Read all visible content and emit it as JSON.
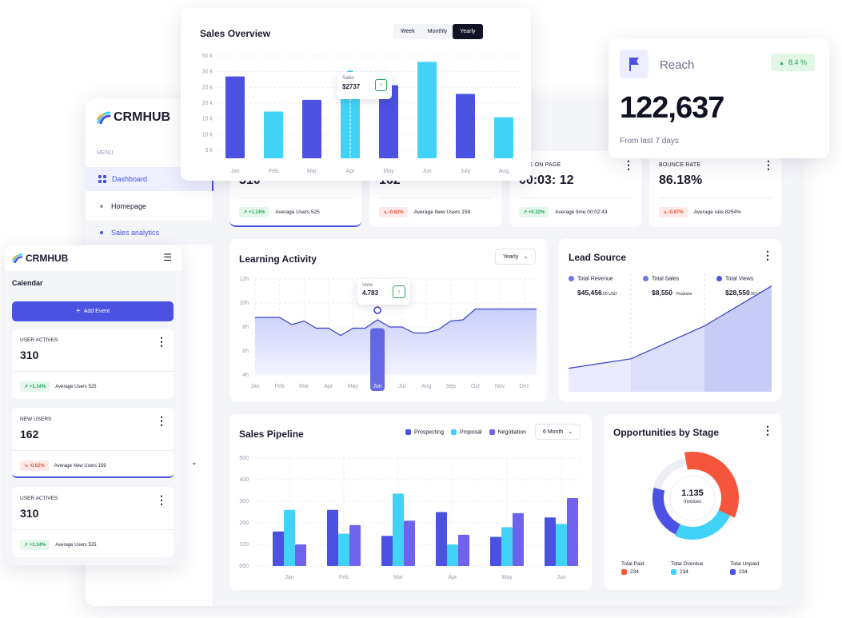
{
  "brand": {
    "name": "CRMHUB"
  },
  "sidebar": {
    "section_label": "MENU",
    "items": [
      {
        "label": "Dashboard"
      },
      {
        "label": "Homepage"
      },
      {
        "label": "Sales analytics"
      }
    ]
  },
  "stats": [
    {
      "label": "",
      "value": "310",
      "delta": "+1.14%",
      "note": "Average Users 525"
    },
    {
      "label": "",
      "value": "162",
      "delta": "-0.62%",
      "note": "Average New Users 159"
    },
    {
      "label": "TIME ON PAGE",
      "value": "00:03: 12",
      "delta": "+0.32%",
      "note": "Average time 00:02:43"
    },
    {
      "label": "BOUNCE RATE",
      "value": "86.18%",
      "delta": "-0.87%",
      "note": "Average rate 8254%"
    }
  ],
  "sales_overview": {
    "title": "Sales Overview",
    "tabs": [
      "Week",
      "Monthly",
      "Yearly"
    ],
    "active_tab": "Yearly",
    "tooltip": {
      "label": "Sales",
      "value": "$2737"
    },
    "chart_data": {
      "type": "bar",
      "categories": [
        "Jan",
        "Feb",
        "Mar",
        "Apr",
        "May",
        "Jun",
        "July",
        "Aug"
      ],
      "values": [
        28,
        16,
        20,
        29,
        25,
        33,
        22,
        14
      ],
      "y_ticks": [
        "5 k",
        "10 k",
        "15 k",
        "20 k",
        "25 k",
        "30 k",
        "50 k"
      ],
      "ylim": [
        0,
        35
      ],
      "colors": [
        "#4b51e0",
        "#41d2f7",
        "#4b51e0",
        "#41d2f7",
        "#4b51e0",
        "#41d2f7",
        "#4b51e0",
        "#41d2f7"
      ]
    }
  },
  "reach": {
    "title": "Reach",
    "delta": "8.4 %",
    "value": "122,637",
    "note": "From last 7 days"
  },
  "learning": {
    "title": "Learning Activity",
    "dropdown": "Yearly",
    "tooltip": {
      "label": "View",
      "value": "4.783"
    },
    "chart_data": {
      "type": "area",
      "categories": [
        "Jan",
        "Feb",
        "Mar",
        "Apr",
        "May",
        "Jun",
        "Jul",
        "Aug",
        "Sep",
        "Oct",
        "Nov",
        "Dec"
      ],
      "x": [
        0,
        0.5,
        1,
        1.5,
        2,
        2.5,
        3,
        3.5,
        4,
        4.5,
        5,
        5.5,
        6,
        6.5,
        7,
        7.5,
        8,
        8.5,
        9,
        9.5,
        10,
        10.5,
        11,
        11.5
      ],
      "values": [
        8.8,
        8.8,
        8.8,
        8.2,
        8.5,
        7.9,
        7.9,
        7.3,
        7.9,
        7.9,
        8.6,
        8.0,
        8.0,
        7.5,
        7.5,
        7.8,
        8.5,
        8.6,
        9.5,
        9.5,
        9.5,
        9.5,
        9.5,
        9.5
      ],
      "y_ticks": [
        "4h",
        "6h",
        "8h",
        "10h",
        "12h"
      ],
      "ylim": [
        4,
        12
      ],
      "highlight": "Jun"
    }
  },
  "lead_source": {
    "title": "Lead Source",
    "items": [
      {
        "label": "Total Revenue",
        "value": "$45,456",
        "unit": ".00 USD",
        "color": "#6f78e8"
      },
      {
        "label": "Total Sales",
        "value": "$8,550",
        "unit": "Products",
        "color": "#6f78e8"
      },
      {
        "label": "Total Views",
        "value": "$28,550",
        "unit": ".00 USD",
        "color": "#4b51e0"
      }
    ],
    "chart_data": {
      "type": "area",
      "x": [
        0,
        1,
        2,
        3
      ],
      "values": [
        10,
        14,
        28,
        45
      ],
      "ylim": [
        0,
        50
      ]
    }
  },
  "pipeline": {
    "title": "Sales Pipeline",
    "dropdown": "6 Month",
    "chart_data": {
      "type": "bar",
      "categories": [
        "Jan",
        "Feb",
        "Mar",
        "Apr",
        "May",
        "Jun"
      ],
      "series": [
        {
          "name": "Prospecting",
          "color": "#4b51e0",
          "values": [
            160,
            260,
            140,
            250,
            135,
            225
          ]
        },
        {
          "name": "Proposal",
          "color": "#41d2f7",
          "values": [
            260,
            150,
            335,
            100,
            180,
            195
          ]
        },
        {
          "name": "Negotiation",
          "color": "#6f63ee",
          "values": [
            100,
            190,
            210,
            145,
            245,
            315
          ]
        }
      ],
      "y_ticks": [
        "000",
        "100",
        "200",
        "300",
        "400",
        "500"
      ],
      "ylim": [
        0,
        500
      ]
    }
  },
  "opportunities": {
    "title": "Opportunities by Stage",
    "center_value": "1.135",
    "center_label": "Invoices",
    "chart_data": {
      "type": "pie",
      "labels": [
        "Total Paid",
        "Total Overdue",
        "Total Unpaid"
      ],
      "values": [
        234,
        234,
        234
      ],
      "colors": [
        "#f5553b",
        "#41d2f7",
        "#4b51e0"
      ]
    },
    "legend": [
      {
        "label": "Total Paid",
        "value": "234",
        "color": "#f5553b"
      },
      {
        "label": "Total Overdue",
        "value": "234",
        "color": "#41d2f7"
      },
      {
        "label": "Total Unpaid",
        "value": "234",
        "color": "#4b51e0"
      }
    ]
  },
  "mobile": {
    "brand": "CRMHUB",
    "page_title": "Calendar",
    "add_button": "Add Event",
    "cards": [
      {
        "label": "USER ACTIVES",
        "value": "310",
        "delta": "+1.14%",
        "note": "Average Users 525",
        "up": true
      },
      {
        "label": "NEW USERS",
        "value": "162",
        "delta": "-0.62%",
        "note": "Average New Users 159",
        "up": false
      },
      {
        "label": "USER ACTIVES",
        "value": "310",
        "delta": "+1.14%",
        "note": "Average Users 525",
        "up": true
      }
    ]
  }
}
